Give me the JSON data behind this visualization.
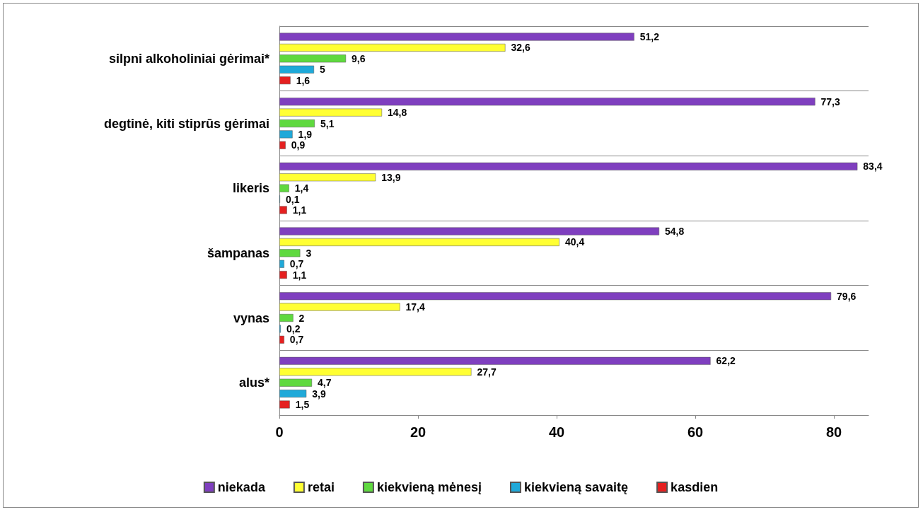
{
  "chart_data": {
    "type": "bar",
    "orientation": "horizontal",
    "categories": [
      "silpni alkoholiniai gėrimai*",
      "degtinė, kiti stiprūs gėrimai",
      "likeris",
      "šampanas",
      "vynas",
      "alus*"
    ],
    "series": [
      {
        "name": "niekada",
        "color": "#7f3fbf",
        "values": [
          51.2,
          77.3,
          83.4,
          54.8,
          79.6,
          62.2
        ],
        "value_labels": [
          "51,2",
          "77,3",
          "83,4",
          "54,8",
          "79,6",
          "62,2"
        ]
      },
      {
        "name": "retai",
        "color": "#ffff33",
        "values": [
          32.6,
          14.8,
          13.9,
          40.4,
          17.4,
          27.7
        ],
        "value_labels": [
          "32,6",
          "14,8",
          "13,9",
          "40,4",
          "17,4",
          "27,7"
        ]
      },
      {
        "name": "kiekvieną mėnesį",
        "color": "#5fd93f",
        "values": [
          9.6,
          5.1,
          1.4,
          3,
          2,
          4.7
        ],
        "value_labels": [
          "9,6",
          "5,1",
          "1,4",
          "3",
          "2",
          "4,7"
        ]
      },
      {
        "name": "kiekvieną savaitę",
        "color": "#1fa9d9",
        "values": [
          5,
          1.9,
          0.1,
          0.7,
          0.2,
          3.9
        ],
        "value_labels": [
          "5",
          "1,9",
          "0,1",
          "0,7",
          "0,2",
          "3,9"
        ]
      },
      {
        "name": "kasdien",
        "color": "#e52020",
        "values": [
          1.6,
          0.9,
          1.1,
          1.1,
          0.7,
          1.5
        ],
        "value_labels": [
          "1,6",
          "0,9",
          "1,1",
          "1,1",
          "0,7",
          "1,5"
        ]
      }
    ],
    "xlim": [
      0,
      85
    ],
    "xticks": [
      0,
      20,
      40,
      60,
      80
    ],
    "grid": "y",
    "legend": "bottom"
  }
}
